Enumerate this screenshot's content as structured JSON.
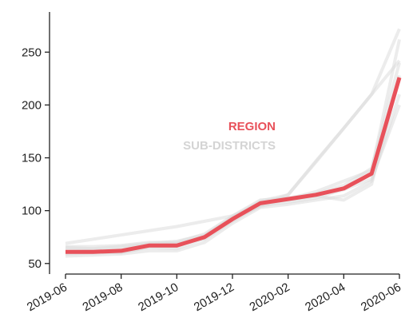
{
  "chart_data": {
    "type": "line",
    "categories": [
      "2019-06",
      null,
      "2019-08",
      null,
      "2019-10",
      null,
      "2019-12",
      null,
      "2020-02",
      null,
      "2020-04",
      null,
      "2020-06"
    ],
    "series": [
      {
        "name": "SUB-DISTRICTS",
        "color": "#d9d9d9",
        "lines": [
          [
            66,
            66,
            67,
            70,
            70,
            78,
            95,
            110,
            112,
            116,
            124,
            140,
            240
          ],
          [
            57,
            58,
            59,
            62,
            62,
            70,
            88,
            103,
            106,
            110,
            114,
            128,
            210
          ],
          [
            69,
            73,
            77,
            81,
            85,
            90,
            95,
            105,
            115,
            147,
            178,
            210,
            242
          ],
          [
            63,
            63,
            64,
            68,
            69,
            73,
            90,
            105,
            108,
            112,
            120,
            130,
            200
          ],
          [
            59,
            60,
            61,
            65,
            64,
            74,
            92,
            108,
            110,
            114,
            110,
            125,
            228
          ],
          [
            65,
            64,
            66,
            69,
            71,
            77,
            94,
            109,
            115,
            146,
            178,
            210,
            272
          ],
          [
            60,
            61,
            60,
            66,
            66,
            76,
            93,
            104,
            111,
            118,
            128,
            138,
            262
          ]
        ]
      },
      {
        "name": "REGION",
        "color": "#e8515a",
        "values": [
          61,
          61,
          62,
          67,
          67,
          75,
          92,
          107,
          111,
          115,
          121,
          135,
          226
        ]
      }
    ],
    "ylim": [
      40,
      288
    ],
    "yticks": [
      50,
      100,
      150,
      200,
      250
    ]
  }
}
